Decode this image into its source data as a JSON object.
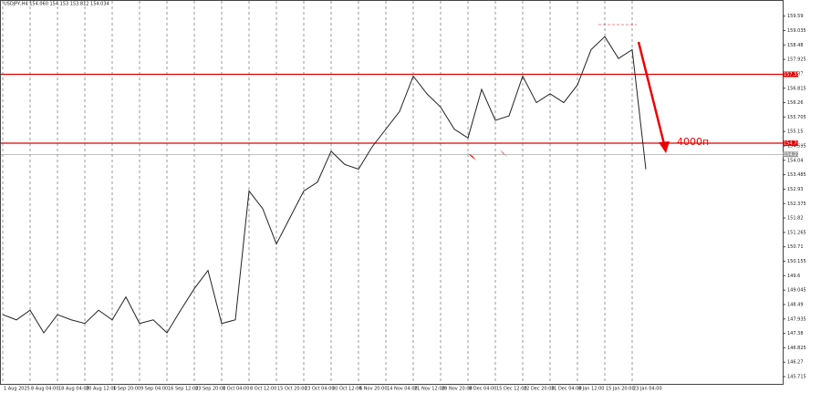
{
  "chart_data": {
    "type": "line",
    "title": "USDJPY,H4 154.060 154.153 153.812 154.034",
    "annotation": "4000п",
    "categories": [
      "1 Aug 2025",
      null,
      "8 Aug 04:00",
      null,
      "18 Aug 04:00",
      null,
      "20 Aug 12:00",
      null,
      "1 Sep 20:00",
      null,
      "9 Sep 04:00",
      null,
      "16 Sep 12:00",
      null,
      "23 Sep 20:00",
      null,
      "1 Oct 04:00",
      null,
      "8 Oct 12:00",
      null,
      "15 Oct 20:00",
      null,
      "23 Oct 04:00",
      null,
      "30 Oct 12:00",
      null,
      "6 Nov 20:00",
      null,
      "14 Nov 04:00",
      null,
      "21 Nov 12:00",
      null,
      "28 Nov 20:00",
      null,
      "8 Dec 04:00",
      null,
      "15 Dec 12:00",
      null,
      "22 Dec 20:00",
      null,
      "31 Dec 04:00",
      null,
      "8 Jan 12:00",
      null,
      "15 Jan 20:00",
      null,
      "23 Jan 04:00",
      null
    ],
    "series": [
      {
        "name": "USDJPY",
        "color": "#222222",
        "values": [
          148.1,
          147.9,
          148.27,
          147.4,
          148.1,
          147.9,
          147.76,
          148.27,
          147.9,
          148.78,
          147.76,
          147.9,
          147.4,
          148.27,
          149.1,
          149.8,
          147.76,
          147.9,
          152.86,
          152.18,
          150.82,
          151.84,
          152.86,
          153.2,
          154.39,
          153.88,
          153.7,
          154.56,
          155.24,
          155.92,
          157.28,
          156.6,
          156.09,
          155.24,
          154.9,
          156.77,
          155.58,
          155.75,
          157.28,
          156.26,
          156.6,
          156.26,
          156.94,
          158.3,
          158.8,
          157.96,
          158.3,
          153.7
        ]
      }
    ],
    "ylim": [
      145.4,
      160.0
    ],
    "yticks": [
      145.715,
      146.27,
      146.825,
      147.38,
      147.935,
      148.49,
      149.045,
      149.6,
      150.155,
      150.71,
      151.265,
      151.82,
      152.375,
      152.93,
      153.485,
      154.04,
      154.595,
      155.15,
      155.705,
      156.26,
      156.815,
      157.37,
      157.925,
      158.48,
      159.035,
      159.59
    ],
    "levels": [
      {
        "value": 157.35,
        "label": "157.350",
        "color": "#e00000"
      },
      {
        "value": 154.7,
        "label": "154.700",
        "color": "#e00000"
      },
      {
        "value": 154.27,
        "label": "154.270",
        "color": "#9a9a9a"
      }
    ],
    "grid": true
  }
}
